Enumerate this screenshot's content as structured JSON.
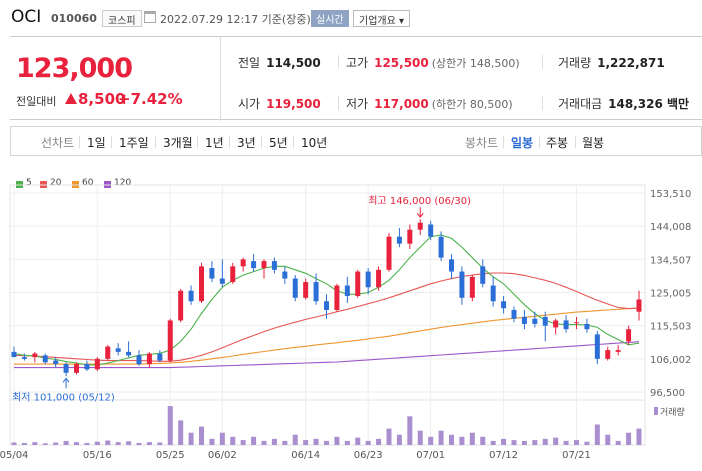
{
  "header": {
    "name": "OCI",
    "code": "010060",
    "market": "코스피",
    "datetime": "2022.07.29 12:17 기준(장중)",
    "realtime_label": "실시간",
    "info_label": "기업개요"
  },
  "summary": {
    "price": "123,000",
    "change_label": "전일대비",
    "change": "8,500",
    "change_pct": "+7.42%",
    "prev_close_label": "전일",
    "prev_close": "114,500",
    "high_label": "고가",
    "high": "125,500",
    "upper_limit": "(상한가 148,500)",
    "volume_label": "거래량",
    "volume": "1,222,871",
    "open_label": "시가",
    "open": "119,500",
    "low_label": "저가",
    "low": "117,000",
    "lower_limit": "(하한가 80,500)",
    "amount_label": "거래대금",
    "amount": "148,326 백만"
  },
  "toolbar": {
    "period_label": "선차트",
    "periods": [
      "1일",
      "1주일",
      "3개월",
      "1년",
      "3년",
      "5년",
      "10년"
    ],
    "candle_label": "봉차트",
    "candles": [
      "일봉",
      "주봉",
      "월봉"
    ],
    "selected_candle": "일봉"
  },
  "colors": {
    "up": "#e8213c",
    "down": "#2b6fd6",
    "ma5": "#4cb34c",
    "ma20": "#e85656",
    "ma60": "#f0962e",
    "ma120": "#9b58c8",
    "volume": "#a98fcf"
  },
  "chart_data": {
    "type": "candlestick",
    "legend": [
      {
        "name": "5",
        "color": "#4cb34c"
      },
      {
        "name": "20",
        "color": "#e85656"
      },
      {
        "name": "60",
        "color": "#f0962e"
      },
      {
        "name": "120",
        "color": "#9b58c8"
      }
    ],
    "y_ticks": [
      "153,510",
      "144,008",
      "134,507",
      "125,005",
      "115,503",
      "106,002",
      "96,500"
    ],
    "ylim": [
      96500,
      153510
    ],
    "x_ticks": [
      "05/04",
      "05/16",
      "05/25",
      "06/02",
      "06/14",
      "06/23",
      "07/01",
      "07/12",
      "07/21"
    ],
    "x_tick_index": [
      0,
      8,
      15,
      20,
      28,
      34,
      40,
      47,
      54
    ],
    "annotations": {
      "high": "최고 146,000 (06/30)",
      "high_index": 39,
      "high_value": 146000,
      "low": "최저 101,000 (05/12)",
      "low_index": 5,
      "low_value": 101000
    },
    "volume_label": "거래량",
    "candles": [
      {
        "o": 108000,
        "h": 109500,
        "l": 106500,
        "c": 106500
      },
      {
        "o": 106500,
        "h": 107500,
        "l": 105500,
        "c": 106000
      },
      {
        "o": 106500,
        "h": 108000,
        "l": 105000,
        "c": 107500
      },
      {
        "o": 107000,
        "h": 107500,
        "l": 104500,
        "c": 105000
      },
      {
        "o": 105500,
        "h": 106500,
        "l": 103500,
        "c": 104500
      },
      {
        "o": 104500,
        "h": 105000,
        "l": 101000,
        "c": 102000
      },
      {
        "o": 102000,
        "h": 105000,
        "l": 101500,
        "c": 104500
      },
      {
        "o": 104500,
        "h": 105500,
        "l": 102500,
        "c": 103000
      },
      {
        "o": 103000,
        "h": 106500,
        "l": 102500,
        "c": 106000
      },
      {
        "o": 106000,
        "h": 110000,
        "l": 105500,
        "c": 109500
      },
      {
        "o": 109000,
        "h": 110500,
        "l": 107000,
        "c": 108000
      },
      {
        "o": 108000,
        "h": 111000,
        "l": 106500,
        "c": 107000
      },
      {
        "o": 107000,
        "h": 108500,
        "l": 104000,
        "c": 104500
      },
      {
        "o": 104500,
        "h": 108000,
        "l": 103500,
        "c": 107500
      },
      {
        "o": 107500,
        "h": 108500,
        "l": 105000,
        "c": 105500
      },
      {
        "o": 105500,
        "h": 117500,
        "l": 105000,
        "c": 117000
      },
      {
        "o": 117000,
        "h": 126000,
        "l": 116500,
        "c": 125500
      },
      {
        "o": 125500,
        "h": 127000,
        "l": 121500,
        "c": 122500
      },
      {
        "o": 122500,
        "h": 133500,
        "l": 122000,
        "c": 132500
      },
      {
        "o": 132000,
        "h": 134000,
        "l": 128000,
        "c": 129000
      },
      {
        "o": 129000,
        "h": 134500,
        "l": 126500,
        "c": 127500
      },
      {
        "o": 128000,
        "h": 133500,
        "l": 127500,
        "c": 132500
      },
      {
        "o": 132500,
        "h": 135000,
        "l": 131000,
        "c": 134500
      },
      {
        "o": 134000,
        "h": 136000,
        "l": 131000,
        "c": 132000
      },
      {
        "o": 132000,
        "h": 134500,
        "l": 129000,
        "c": 134000
      },
      {
        "o": 134000,
        "h": 135000,
        "l": 130500,
        "c": 131500
      },
      {
        "o": 131000,
        "h": 132500,
        "l": 127500,
        "c": 129000
      },
      {
        "o": 129000,
        "h": 130000,
        "l": 122500,
        "c": 123500
      },
      {
        "o": 123500,
        "h": 129000,
        "l": 123000,
        "c": 128000
      },
      {
        "o": 128000,
        "h": 130500,
        "l": 121500,
        "c": 122500
      },
      {
        "o": 122500,
        "h": 124500,
        "l": 117500,
        "c": 120000
      },
      {
        "o": 120000,
        "h": 127500,
        "l": 119500,
        "c": 127000
      },
      {
        "o": 127000,
        "h": 129500,
        "l": 122000,
        "c": 124000
      },
      {
        "o": 124000,
        "h": 131500,
        "l": 123500,
        "c": 131000
      },
      {
        "o": 131000,
        "h": 132000,
        "l": 124500,
        "c": 126500
      },
      {
        "o": 126500,
        "h": 132500,
        "l": 125500,
        "c": 131500
      },
      {
        "o": 131500,
        "h": 142000,
        "l": 131000,
        "c": 141000
      },
      {
        "o": 141000,
        "h": 143500,
        "l": 138000,
        "c": 139000
      },
      {
        "o": 139000,
        "h": 144500,
        "l": 137500,
        "c": 143000
      },
      {
        "o": 143000,
        "h": 146000,
        "l": 141500,
        "c": 145000
      },
      {
        "o": 144500,
        "h": 145500,
        "l": 140000,
        "c": 141000
      },
      {
        "o": 141000,
        "h": 142500,
        "l": 134000,
        "c": 135000
      },
      {
        "o": 134500,
        "h": 136000,
        "l": 129000,
        "c": 131000
      },
      {
        "o": 131000,
        "h": 132500,
        "l": 121500,
        "c": 123500
      },
      {
        "o": 123500,
        "h": 130000,
        "l": 122500,
        "c": 129500
      },
      {
        "o": 132500,
        "h": 134500,
        "l": 126500,
        "c": 127500
      },
      {
        "o": 127000,
        "h": 129500,
        "l": 121000,
        "c": 122500
      },
      {
        "o": 122500,
        "h": 124000,
        "l": 119000,
        "c": 120500
      },
      {
        "o": 120000,
        "h": 121000,
        "l": 116500,
        "c": 117500
      },
      {
        "o": 118000,
        "h": 120000,
        "l": 114500,
        "c": 116000
      },
      {
        "o": 117500,
        "h": 119500,
        "l": 115000,
        "c": 116000
      },
      {
        "o": 118000,
        "h": 119500,
        "l": 111000,
        "c": 115500
      },
      {
        "o": 115000,
        "h": 117500,
        "l": 113000,
        "c": 117000
      },
      {
        "o": 117000,
        "h": 118500,
        "l": 113500,
        "c": 114500
      },
      {
        "o": 116500,
        "h": 118000,
        "l": 114500,
        "c": 116500
      },
      {
        "o": 116000,
        "h": 117500,
        "l": 113500,
        "c": 114500
      },
      {
        "o": 113000,
        "h": 114000,
        "l": 104500,
        "c": 106000
      },
      {
        "o": 106000,
        "h": 109500,
        "l": 105500,
        "c": 108500
      },
      {
        "o": 108000,
        "h": 110000,
        "l": 107000,
        "c": 108500
      },
      {
        "o": 111000,
        "h": 115500,
        "l": 110000,
        "c": 114500
      },
      {
        "o": 119500,
        "h": 125500,
        "l": 117000,
        "c": 123000
      }
    ],
    "ma5": [
      107500,
      107000,
      106800,
      106200,
      105800,
      105200,
      104800,
      104300,
      104200,
      104800,
      105500,
      106300,
      107000,
      107300,
      107600,
      108500,
      111000,
      114500,
      119000,
      123000,
      126500,
      128500,
      130000,
      131000,
      132000,
      132500,
      132500,
      131500,
      130500,
      129000,
      127500,
      125500,
      124500,
      124500,
      125000,
      126500,
      128500,
      131500,
      135000,
      138000,
      141000,
      141500,
      140500,
      138000,
      135000,
      132000,
      129500,
      127500,
      124500,
      121500,
      119000,
      117000,
      116000,
      115800,
      115800,
      115700,
      115000,
      113000,
      111500,
      110000,
      110500
    ],
    "ma20": [
      107000,
      106900,
      106800,
      106600,
      106400,
      106200,
      106000,
      105800,
      105600,
      105500,
      105500,
      105500,
      105500,
      105400,
      105300,
      105300,
      105600,
      106200,
      107000,
      108000,
      109200,
      110400,
      111600,
      112700,
      113800,
      114800,
      115700,
      116500,
      117300,
      118000,
      118700,
      119500,
      120200,
      121000,
      121800,
      122600,
      123500,
      124500,
      125500,
      126500,
      127500,
      128300,
      129000,
      129600,
      130000,
      130400,
      130600,
      130600,
      130400,
      129900,
      129200,
      128500,
      127600,
      126500,
      125300,
      124000,
      122800,
      121700,
      120700,
      120400,
      120500
    ],
    "ma60": [
      104500,
      104500,
      104500,
      104500,
      104500,
      104500,
      104500,
      104500,
      104500,
      104500,
      104500,
      104500,
      104500,
      104600,
      104700,
      104800,
      105000,
      105300,
      105600,
      106000,
      106400,
      106800,
      107300,
      107700,
      108100,
      108500,
      108900,
      109300,
      109600,
      110000,
      110300,
      110600,
      111000,
      111300,
      111700,
      112100,
      112500,
      113000,
      113500,
      114000,
      114500,
      115000,
      115400,
      115800,
      116200,
      116600,
      117000,
      117300,
      117600,
      117900,
      118200,
      118500,
      118800,
      119100,
      119400,
      119600,
      119800,
      120000,
      120200,
      120400,
      120500
    ],
    "ma120": [
      103500,
      103500,
      103500,
      103500,
      103500,
      103500,
      103500,
      103500,
      103500,
      103500,
      103500,
      103500,
      103500,
      103500,
      103500,
      103500,
      103600,
      103700,
      103800,
      103900,
      104000,
      104100,
      104200,
      104300,
      104400,
      104500,
      104600,
      104700,
      104800,
      104900,
      105000,
      105100,
      105300,
      105500,
      105700,
      105900,
      106100,
      106300,
      106500,
      106700,
      106900,
      107100,
      107300,
      107500,
      107700,
      107900,
      108100,
      108300,
      108500,
      108700,
      108900,
      109100,
      109300,
      109500,
      109700,
      109900,
      110100,
      110300,
      110500,
      110700,
      110900
    ],
    "volumes": [
      0.06,
      0.05,
      0.07,
      0.04,
      0.06,
      0.1,
      0.07,
      0.05,
      0.08,
      0.11,
      0.07,
      0.09,
      0.05,
      0.07,
      0.06,
      0.95,
      0.6,
      0.3,
      0.45,
      0.15,
      0.3,
      0.2,
      0.12,
      0.2,
      0.1,
      0.15,
      0.1,
      0.25,
      0.12,
      0.15,
      0.1,
      0.2,
      0.1,
      0.18,
      0.1,
      0.15,
      0.4,
      0.25,
      0.7,
      0.35,
      0.2,
      0.35,
      0.25,
      0.2,
      0.3,
      0.2,
      0.1,
      0.15,
      0.12,
      0.1,
      0.12,
      0.15,
      0.18,
      0.1,
      0.12,
      0.08,
      0.5,
      0.25,
      0.1,
      0.3,
      0.4
    ]
  }
}
